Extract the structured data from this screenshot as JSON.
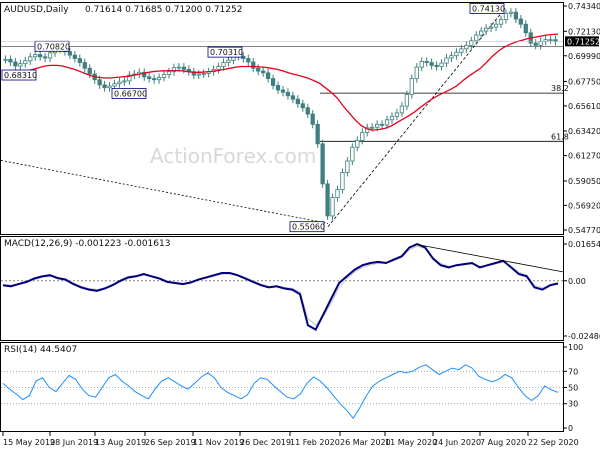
{
  "header": {
    "title": "AUDUSD,Daily",
    "ohlc": "0.71614 0.71685 0.71200 0.71252"
  },
  "colors": {
    "candle_body": "#3f7f7f",
    "candle_up": "#ffffff",
    "ma": "#e8001c",
    "macd": "#00007f",
    "signal": "#cccccc",
    "rsi": "#1e90ff",
    "trend": "#000000",
    "last_price_bg": "#000000"
  },
  "chart_data": [
    {
      "type": "candlestick",
      "title": "AUDUSD,Daily",
      "x_ticks": [
        "15 May 2019",
        "28 Jun 2019",
        "13 Aug 2019",
        "26 Sep 2019",
        "11 Nov 2019",
        "26 Dec 2019",
        "11 Feb 2020",
        "26 Mar 2020",
        "11 May 2020",
        "24 Jun 2020",
        "7 Aug 2020",
        "22 Sep 2020"
      ],
      "y_ticks": [
        "0.74340",
        "0.72130",
        "0.69990",
        "0.67750",
        "0.65610",
        "0.63420",
        "0.61270",
        "0.59050",
        "0.56920",
        "0.54770"
      ],
      "ylim": [
        0.5477,
        0.7434
      ],
      "last_price": "0.71252",
      "annotations": [
        "0.68310",
        "0.70820",
        "0.66700",
        "0.70310",
        "0.55060",
        "0.74130"
      ],
      "fib_labels": [
        "38.2",
        "61.8"
      ],
      "fib_levels": [
        0.6673,
        0.6252
      ],
      "series": [
        {
          "name": "",
          "values": [
            0.6968,
            0.6945,
            0.691,
            0.693,
            0.6955,
            0.699,
            0.701,
            0.699,
            0.698,
            0.7025,
            0.706,
            0.7055,
            0.7035,
            0.7005,
            0.6975,
            0.694,
            0.689,
            0.684,
            0.679,
            0.6745,
            0.672,
            0.6735,
            0.6755,
            0.677,
            0.678,
            0.683,
            0.684,
            0.6855,
            0.6815,
            0.68,
            0.679,
            0.681,
            0.6835,
            0.686,
            0.6895,
            0.69,
            0.688,
            0.686,
            0.683,
            0.684,
            0.6845,
            0.686,
            0.688,
            0.6905,
            0.694,
            0.696,
            0.7005,
            0.6995,
            0.6975,
            0.6945,
            0.689,
            0.6865,
            0.685,
            0.68,
            0.674,
            0.67,
            0.668,
            0.665,
            0.662,
            0.658,
            0.6545,
            0.649,
            0.64,
            0.623,
            0.588,
            0.56,
            0.576,
            0.583,
            0.598,
            0.608,
            0.62,
            0.626,
            0.633,
            0.637,
            0.6375,
            0.64,
            0.6395,
            0.644,
            0.647,
            0.65,
            0.656,
            0.666,
            0.68,
            0.69,
            0.695,
            0.694,
            0.6915,
            0.6905,
            0.6935,
            0.698,
            0.7,
            0.703,
            0.706,
            0.709,
            0.713,
            0.718,
            0.7215,
            0.724,
            0.725,
            0.7275,
            0.7315,
            0.737,
            0.738,
            0.732,
            0.7275,
            0.72,
            0.711,
            0.709,
            0.7125,
            0.714,
            0.714,
            0.7125
          ]
        },
        {
          "name": "",
          "values": [
            0.683,
            0.6835,
            0.6845,
            0.6855,
            0.6865,
            0.688,
            0.6895,
            0.691,
            0.6915,
            0.6915,
            0.691,
            0.6895,
            0.688,
            0.686,
            0.684,
            0.682,
            0.681,
            0.6805,
            0.6805,
            0.681,
            0.6815,
            0.682,
            0.683,
            0.684,
            0.685,
            0.686,
            0.6865,
            0.6868,
            0.687,
            0.687,
            0.6868,
            0.686,
            0.6855,
            0.6855,
            0.6858,
            0.6863,
            0.687,
            0.688,
            0.689,
            0.69,
            0.6905,
            0.6905,
            0.6905,
            0.6902,
            0.6898,
            0.689,
            0.688,
            0.6865,
            0.6848,
            0.6835,
            0.682,
            0.6805,
            0.6785,
            0.676,
            0.672,
            0.668,
            0.663,
            0.656,
            0.65,
            0.644,
            0.639,
            0.636,
            0.635,
            0.6355,
            0.6365,
            0.6385,
            0.6415,
            0.6445,
            0.6475,
            0.651,
            0.655,
            0.659,
            0.6625,
            0.6655,
            0.668,
            0.6705,
            0.6735,
            0.678,
            0.682,
            0.6855,
            0.689,
            0.694,
            0.6995,
            0.704,
            0.7075,
            0.71,
            0.712,
            0.7135,
            0.715,
            0.716,
            0.717,
            0.718,
            0.7185,
            0.7188
          ]
        }
      ]
    },
    {
      "type": "line",
      "title": "MACD(12,26,9) -0.001223 -0.001613",
      "y_ticks": [
        "0.01654",
        "0.00",
        "-0.02486"
      ],
      "ylim": [
        -0.02486,
        0.01654
      ],
      "series": [
        {
          "name": "",
          "values": [
            -0.002,
            -0.0025,
            -0.0015,
            -0.0005,
            0.001,
            0.002,
            0.0025,
            0.0012,
            0.0005,
            -0.0015,
            -0.003,
            -0.004,
            -0.0045,
            -0.0035,
            -0.002,
            0.0,
            0.0015,
            0.002,
            0.003,
            0.002,
            0.001,
            -0.0005,
            -0.001,
            -0.0015,
            -0.0008,
            0.0005,
            0.0015,
            0.0025,
            0.0035,
            0.0035,
            0.0025,
            0.001,
            -0.0005,
            -0.002,
            -0.003,
            -0.0025,
            -0.0035,
            -0.004,
            -0.006,
            -0.02,
            -0.022,
            -0.015,
            -0.008,
            -0.001,
            0.002,
            0.005,
            0.007,
            0.008,
            0.0085,
            0.008,
            0.0095,
            0.011,
            0.015,
            0.0165,
            0.015,
            0.01,
            0.007,
            0.006,
            0.007,
            0.0075,
            0.008,
            0.006,
            0.007,
            0.008,
            0.009,
            0.006,
            0.003,
            0.002,
            -0.003,
            -0.004,
            -0.002,
            -0.0012
          ]
        },
        {
          "name": "",
          "values": [
            -0.0018,
            -0.002,
            -0.0015,
            -0.0008,
            0.0005,
            0.0015,
            0.002,
            0.0015,
            0.0008,
            -0.001,
            -0.0025,
            -0.0035,
            -0.004,
            -0.0035,
            -0.0022,
            -0.0005,
            0.001,
            0.0018,
            0.0025,
            0.002,
            0.0012,
            0.0,
            -0.0008,
            -0.0012,
            -0.0008,
            0.0003,
            0.0012,
            0.002,
            0.003,
            0.0032,
            0.0026,
            0.0014,
            0.0,
            -0.0015,
            -0.0025,
            -0.0025,
            -0.003,
            -0.0035,
            -0.005,
            -0.017,
            -0.02,
            -0.016,
            -0.01,
            -0.003,
            0.001,
            0.004,
            0.006,
            0.0072,
            0.0078,
            0.0078,
            0.009,
            0.0105,
            0.014,
            0.0155,
            0.0145,
            0.0105,
            0.0078,
            0.0065,
            0.0068,
            0.0072,
            0.0076,
            0.0064,
            0.0068,
            0.0076,
            0.0085,
            0.0065,
            0.0038,
            0.0025,
            -0.002,
            -0.0032,
            -0.0022,
            -0.0016
          ]
        }
      ]
    },
    {
      "type": "line",
      "title": "RSI(14) 44.5407",
      "y_ticks": [
        "100",
        "70",
        "50",
        "30",
        "0"
      ],
      "ylim": [
        0,
        100
      ],
      "series": [
        {
          "name": "",
          "values": [
            55,
            48,
            42,
            35,
            40,
            58,
            62,
            50,
            45,
            55,
            65,
            60,
            48,
            40,
            38,
            50,
            62,
            66,
            58,
            52,
            45,
            40,
            36,
            48,
            58,
            62,
            57,
            52,
            48,
            55,
            63,
            68,
            62,
            50,
            44,
            40,
            36,
            41,
            55,
            62,
            60,
            52,
            45,
            38,
            36,
            42,
            55,
            63,
            58,
            50,
            40,
            30,
            22,
            12,
            25,
            40,
            52,
            58,
            62,
            66,
            70,
            68,
            70,
            75,
            78,
            72,
            66,
            70,
            74,
            72,
            78,
            74,
            64,
            60,
            57,
            60,
            66,
            62,
            50,
            40,
            34,
            40,
            52,
            47,
            44
          ]
        }
      ]
    }
  ],
  "watermark": "ActionForex.com"
}
